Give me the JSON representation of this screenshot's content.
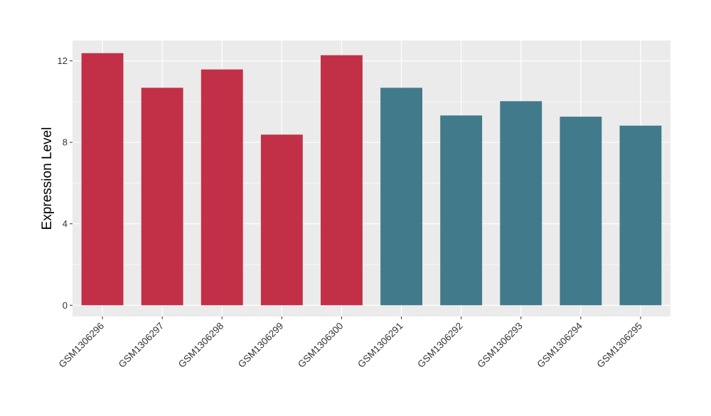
{
  "chart_data": {
    "type": "bar",
    "title": "",
    "xlabel": "",
    "ylabel": "Expression Level",
    "categories": [
      "GSM1306296",
      "GSM1306297",
      "GSM1306298",
      "GSM1306299",
      "GSM1306300",
      "GSM1306291",
      "GSM1306292",
      "GSM1306293",
      "GSM1306294",
      "GSM1306295"
    ],
    "values": [
      12.38,
      10.68,
      11.58,
      8.38,
      12.28,
      10.68,
      9.32,
      10.02,
      9.26,
      8.82
    ],
    "bar_colors": [
      "#C23047",
      "#C23047",
      "#C23047",
      "#C23047",
      "#C23047",
      "#417A8B",
      "#417A8B",
      "#417A8B",
      "#417A8B",
      "#417A8B"
    ],
    "ylim": [
      -0.55,
      13.0
    ],
    "yticks": [
      0,
      4,
      8,
      12
    ],
    "grid": true,
    "legend": "none",
    "panel_background": "#EBEBEB",
    "grid_color": "#FFFFFF"
  }
}
